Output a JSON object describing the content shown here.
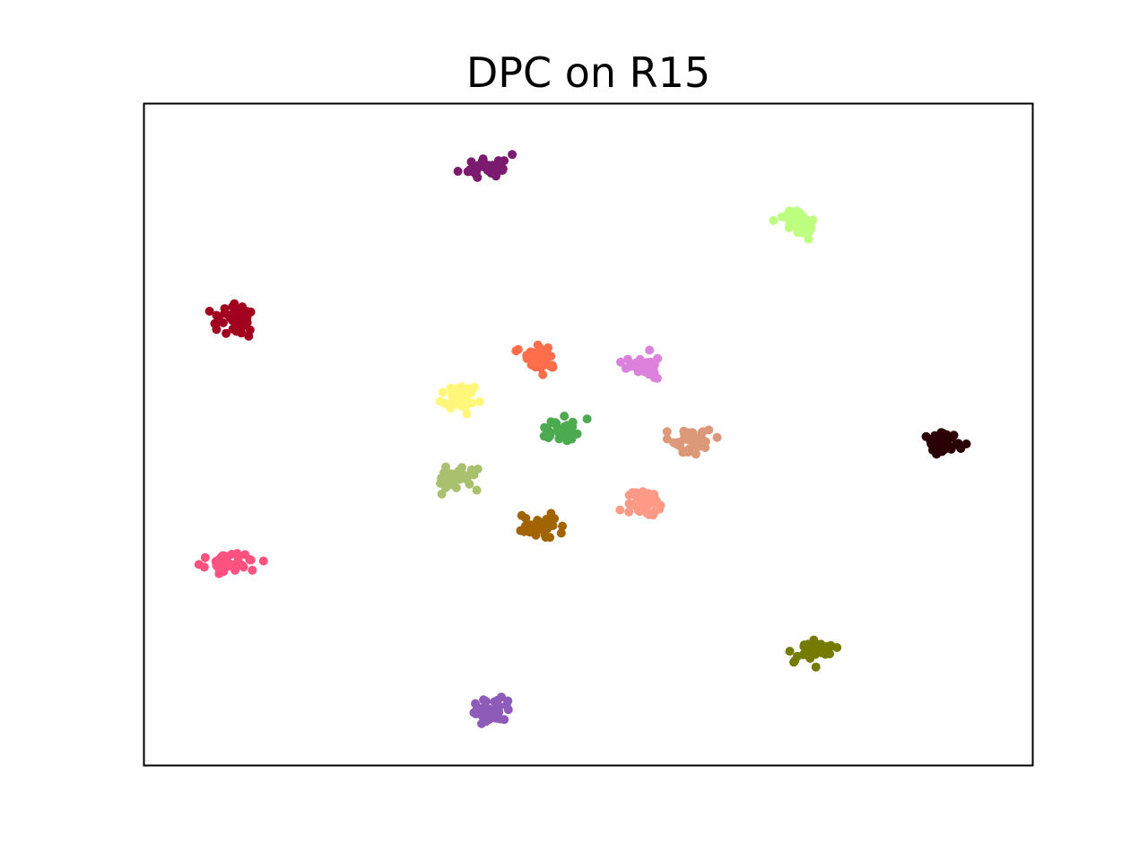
{
  "chart_data": {
    "type": "scatter",
    "title": "DPC on R15",
    "xlabel": "",
    "ylabel": "",
    "xlim": [
      0,
      100
    ],
    "ylim": [
      0,
      100
    ],
    "grid": false,
    "show_ticks": false,
    "series": [
      {
        "color": "#7b1a6e",
        "center": [
          38.5,
          90.5
        ],
        "spread": [
          2.3,
          1.7
        ],
        "n": 40,
        "seed": 11
      },
      {
        "color": "#bfff7f",
        "center": [
          74.0,
          82.0
        ],
        "spread": [
          2.2,
          1.7
        ],
        "n": 40,
        "seed": 12
      },
      {
        "color": "#a1001e",
        "center": [
          10.0,
          67.5
        ],
        "spread": [
          2.1,
          2.0
        ],
        "n": 40,
        "seed": 13
      },
      {
        "color": "#ff6e4a",
        "center": [
          45.0,
          61.5
        ],
        "spread": [
          2.2,
          1.7
        ],
        "n": 40,
        "seed": 14
      },
      {
        "color": "#dd82dc",
        "center": [
          56.5,
          60.5
        ],
        "spread": [
          2.0,
          1.6
        ],
        "n": 36,
        "seed": 15
      },
      {
        "color": "#fff77a",
        "center": [
          35.5,
          55.5
        ],
        "spread": [
          1.9,
          1.7
        ],
        "n": 38,
        "seed": 16
      },
      {
        "color": "#4caa50",
        "center": [
          47.0,
          50.5
        ],
        "spread": [
          2.0,
          1.6
        ],
        "n": 38,
        "seed": 17
      },
      {
        "color": "#db9979",
        "center": [
          61.5,
          49.0
        ],
        "spread": [
          2.1,
          1.8
        ],
        "n": 40,
        "seed": 18
      },
      {
        "color": "#2a0004",
        "center": [
          90.0,
          49.0
        ],
        "spread": [
          1.8,
          1.5
        ],
        "n": 40,
        "seed": 19
      },
      {
        "color": "#a9c06f",
        "center": [
          35.0,
          43.5
        ],
        "spread": [
          2.1,
          1.9
        ],
        "n": 38,
        "seed": 20
      },
      {
        "color": "#ff9a86",
        "center": [
          56.5,
          39.5
        ],
        "spread": [
          2.1,
          1.8
        ],
        "n": 40,
        "seed": 21
      },
      {
        "color": "#a16400",
        "center": [
          44.5,
          36.0
        ],
        "spread": [
          2.1,
          1.5
        ],
        "n": 40,
        "seed": 22
      },
      {
        "color": "#ff5280",
        "center": [
          10.0,
          30.5
        ],
        "spread": [
          2.7,
          1.1
        ],
        "n": 40,
        "seed": 23
      },
      {
        "color": "#757a00",
        "center": [
          75.0,
          17.0
        ],
        "spread": [
          2.1,
          1.7
        ],
        "n": 40,
        "seed": 24
      },
      {
        "color": "#8c5cb8",
        "center": [
          39.0,
          8.0
        ],
        "spread": [
          1.9,
          1.6
        ],
        "n": 38,
        "seed": 25
      }
    ]
  }
}
